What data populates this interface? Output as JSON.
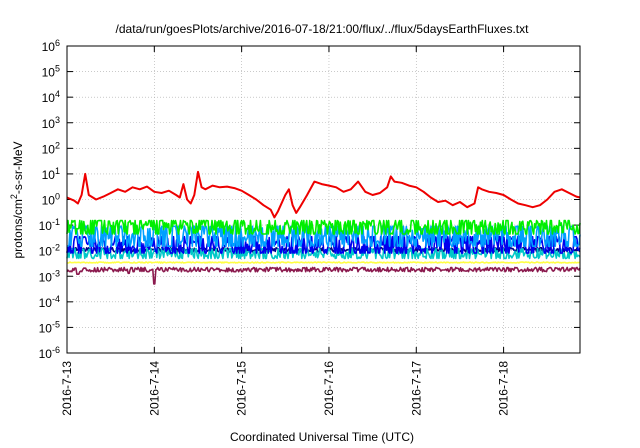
{
  "chart_data": {
    "type": "line",
    "title": "/data/run/goesPlots/archive/2016-07-18/21:00/flux/../flux/5daysEarthFluxes.txt",
    "xlabel": "Coordinated Universal Time (UTC)",
    "ylabel_parts": {
      "base": "protons/cm",
      "sup": "2",
      "rest": "-s-sr-MeV"
    },
    "yscale": "log",
    "ylim": [
      1e-06,
      1000000.0
    ],
    "xlim": [
      "2016-07-13",
      "2016-07-18 21:00"
    ],
    "x_ticks": [
      "2016-7-13",
      "2016-7-14",
      "2016-7-15",
      "2016-7-16",
      "2016-7-17",
      "2016-7-18"
    ],
    "y_ticks": [
      {
        "base": "10",
        "exp": "-6"
      },
      {
        "base": "10",
        "exp": "-5"
      },
      {
        "base": "10",
        "exp": "-4"
      },
      {
        "base": "10",
        "exp": "-3"
      },
      {
        "base": "10",
        "exp": "-2"
      },
      {
        "base": "10",
        "exp": "-1"
      },
      {
        "base": "10",
        "exp": "0"
      },
      {
        "base": "10",
        "exp": "1"
      },
      {
        "base": "10",
        "exp": "2"
      },
      {
        "base": "10",
        "exp": "3"
      },
      {
        "base": "10",
        "exp": "4"
      },
      {
        "base": "10",
        "exp": "5"
      },
      {
        "base": "10",
        "exp": "6"
      }
    ],
    "grid": true,
    "legend": "none",
    "series": [
      {
        "color": "#ee0000",
        "points": [
          [
            "2016-07-13 00:00",
            1.2
          ],
          [
            "2016-07-13 02:00",
            0.9
          ],
          [
            "2016-07-13 03:00",
            0.7
          ],
          [
            "2016-07-13 04:00",
            1.5
          ],
          [
            "2016-07-13 05:00",
            10
          ],
          [
            "2016-07-13 06:00",
            1.5
          ],
          [
            "2016-07-13 08:00",
            1.0
          ],
          [
            "2016-07-13 10:00",
            1.3
          ],
          [
            "2016-07-13 12:00",
            1.8
          ],
          [
            "2016-07-13 14:00",
            2.5
          ],
          [
            "2016-07-13 16:00",
            2.0
          ],
          [
            "2016-07-13 18:00",
            3.0
          ],
          [
            "2016-07-13 20:00",
            2.5
          ],
          [
            "2016-07-13 22:00",
            3.2
          ],
          [
            "2016-07-14 00:00",
            2.0
          ],
          [
            "2016-07-14 02:00",
            1.8
          ],
          [
            "2016-07-14 04:00",
            2.2
          ],
          [
            "2016-07-14 06:00",
            1.5
          ],
          [
            "2016-07-14 07:00",
            1.2
          ],
          [
            "2016-07-14 08:00",
            4.0
          ],
          [
            "2016-07-14 09:00",
            1.0
          ],
          [
            "2016-07-14 10:00",
            0.7
          ],
          [
            "2016-07-14 11:00",
            1.5
          ],
          [
            "2016-07-14 12:00",
            12
          ],
          [
            "2016-07-14 13:00",
            3.0
          ],
          [
            "2016-07-14 14:00",
            2.5
          ],
          [
            "2016-07-14 16:00",
            3.5
          ],
          [
            "2016-07-14 18:00",
            3.0
          ],
          [
            "2016-07-14 20:00",
            3.2
          ],
          [
            "2016-07-14 22:00",
            2.8
          ],
          [
            "2016-07-15 00:00",
            2.2
          ],
          [
            "2016-07-15 02:00",
            1.5
          ],
          [
            "2016-07-15 04:00",
            1.0
          ],
          [
            "2016-07-15 06:00",
            0.6
          ],
          [
            "2016-07-15 08:00",
            0.4
          ],
          [
            "2016-07-15 09:00",
            0.2
          ],
          [
            "2016-07-15 10:00",
            0.35
          ],
          [
            "2016-07-15 12:00",
            1.5
          ],
          [
            "2016-07-15 13:00",
            2.5
          ],
          [
            "2016-07-15 14:00",
            0.6
          ],
          [
            "2016-07-15 15:00",
            0.3
          ],
          [
            "2016-07-15 16:00",
            0.5
          ],
          [
            "2016-07-15 18:00",
            1.5
          ],
          [
            "2016-07-15 20:00",
            5.0
          ],
          [
            "2016-07-15 22:00",
            4.0
          ],
          [
            "2016-07-16 00:00",
            3.5
          ],
          [
            "2016-07-16 02:00",
            3.0
          ],
          [
            "2016-07-16 04:00",
            2.0
          ],
          [
            "2016-07-16 06:00",
            2.5
          ],
          [
            "2016-07-16 08:00",
            5.0
          ],
          [
            "2016-07-16 10:00",
            2.0
          ],
          [
            "2016-07-16 12:00",
            1.5
          ],
          [
            "2016-07-16 14:00",
            1.8
          ],
          [
            "2016-07-16 16:00",
            3.0
          ],
          [
            "2016-07-16 17:00",
            8.0
          ],
          [
            "2016-07-16 18:00",
            5.0
          ],
          [
            "2016-07-16 20:00",
            4.5
          ],
          [
            "2016-07-16 22:00",
            3.5
          ],
          [
            "2016-07-17 00:00",
            3.0
          ],
          [
            "2016-07-17 02:00",
            2.0
          ],
          [
            "2016-07-17 04:00",
            1.2
          ],
          [
            "2016-07-17 06:00",
            0.8
          ],
          [
            "2016-07-17 08:00",
            0.9
          ],
          [
            "2016-07-17 10:00",
            0.6
          ],
          [
            "2016-07-17 12:00",
            0.8
          ],
          [
            "2016-07-17 14:00",
            0.5
          ],
          [
            "2016-07-17 16:00",
            0.7
          ],
          [
            "2016-07-17 17:00",
            3.0
          ],
          [
            "2016-07-17 18:00",
            2.5
          ],
          [
            "2016-07-17 20:00",
            2.0
          ],
          [
            "2016-07-17 22:00",
            1.8
          ],
          [
            "2016-07-18 00:00",
            1.5
          ],
          [
            "2016-07-18 02:00",
            1.0
          ],
          [
            "2016-07-18 04:00",
            0.7
          ],
          [
            "2016-07-18 06:00",
            0.6
          ],
          [
            "2016-07-18 08:00",
            0.5
          ],
          [
            "2016-07-18 10:00",
            0.6
          ],
          [
            "2016-07-18 12:00",
            1.0
          ],
          [
            "2016-07-18 14:00",
            2.0
          ],
          [
            "2016-07-18 16:00",
            2.5
          ],
          [
            "2016-07-18 18:00",
            1.8
          ],
          [
            "2016-07-18 20:00",
            1.3
          ],
          [
            "2016-07-18 21:00",
            1.2
          ]
        ]
      },
      {
        "color": "#00ee00",
        "band": [
          0.045,
          0.15
        ],
        "wiggle": 0.35
      },
      {
        "color": "#00a0ff",
        "band": [
          0.015,
          0.09
        ],
        "wiggle": 0.45
      },
      {
        "color": "#0000ee",
        "band": [
          0.008,
          0.035
        ],
        "wiggle": 0.35
      },
      {
        "color": "#00c8c8",
        "band": [
          0.005,
          0.012
        ],
        "wiggle": 0.25
      },
      {
        "color": "#00008b",
        "band": [
          0.009,
          0.013
        ],
        "wiggle": 0.12
      },
      {
        "color": "#ffff44",
        "band": [
          0.0033,
          0.0036
        ],
        "wiggle": 0.03
      },
      {
        "color": "#8b1a4e",
        "band": [
          0.0015,
          0.0022
        ],
        "wiggle": 0.1,
        "dips": [
          [
            "2016-07-13 03:00",
            0.0012
          ],
          [
            "2016-07-13 17:00",
            0.0013
          ],
          [
            "2016-07-14 00:00",
            0.0005
          ]
        ]
      }
    ]
  }
}
